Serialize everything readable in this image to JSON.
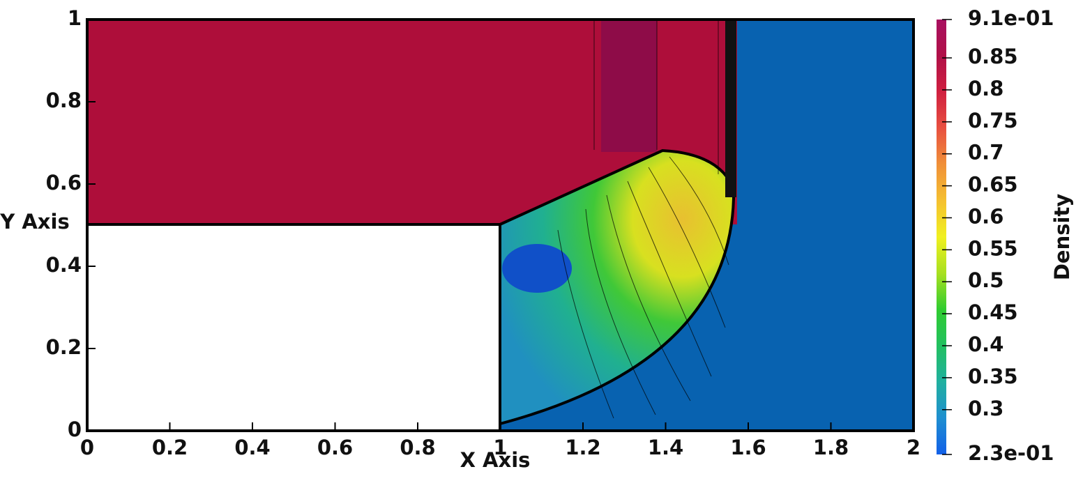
{
  "chart_data": {
    "type": "field",
    "x_label": "X Axis",
    "y_label": "Y Axis",
    "xlim": [
      0,
      2
    ],
    "xticks": [
      0,
      0.2,
      0.4,
      0.6,
      0.8,
      1,
      1.2,
      1.4,
      1.6,
      1.8,
      2
    ],
    "ylim": [
      0,
      1
    ],
    "yticks": [
      0,
      0.2,
      0.4,
      0.6,
      0.8,
      1
    ],
    "colorbar": {
      "title": "Density",
      "range": [
        0.23,
        0.91
      ],
      "ticks": [
        {
          "value": 0.91,
          "label": "9.1e-01"
        },
        0.85,
        0.8,
        0.75,
        0.7,
        0.65,
        0.6,
        0.55,
        0.5,
        0.45,
        0.4,
        0.35,
        0.3,
        {
          "value": 0.23,
          "label": "2.3e-01"
        }
      ],
      "colormap": [
        "#1260e8",
        "#1f8fd0",
        "#20b0a0",
        "#22c060",
        "#30cc30",
        "#a8e020",
        "#f0f020",
        "#f5c030",
        "#f09038",
        "#e85040",
        "#d02040",
        "#b01048",
        "#a81060"
      ]
    }
  }
}
